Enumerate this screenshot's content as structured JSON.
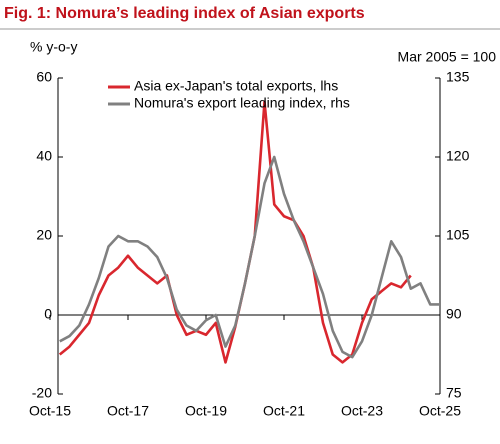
{
  "chart_data": {
    "type": "line",
    "title": "Fig. 1: Nomura’s leading index of Asian exports",
    "y_label": "% y-o-y",
    "y2_label": "Mar 2005 = 100",
    "categories": [
      "Oct-15",
      null,
      null,
      null,
      null,
      null,
      null,
      null,
      "Oct-17",
      null,
      null,
      null,
      null,
      null,
      null,
      null,
      "Oct-19",
      null,
      null,
      null,
      null,
      null,
      null,
      null,
      "Oct-21",
      null,
      null,
      null,
      null,
      null,
      null,
      null,
      "Oct-23",
      null,
      null,
      null,
      null,
      null,
      null,
      null,
      "Oct-25"
    ],
    "series": [
      {
        "name": "Asia ex-Japan's total exports, lhs",
        "color": "#d9272e",
        "axis": "y",
        "values": [
          null,
          -10,
          -8,
          -5,
          -2,
          5,
          10,
          12,
          15,
          12,
          10,
          8,
          10,
          0,
          -5,
          -4,
          -5,
          -2,
          -12,
          -3,
          8,
          20,
          54,
          28,
          25,
          24,
          20,
          12,
          -2,
          -10,
          -12,
          -10,
          -2,
          4,
          6,
          8,
          7,
          10,
          null,
          null,
          null
        ]
      },
      {
        "name": "Nomura's export leading index, rhs",
        "color": "#808080",
        "axis": "y2",
        "values": [
          null,
          85,
          86,
          88,
          92,
          97,
          103,
          105,
          104,
          104,
          103,
          101,
          97,
          91,
          88,
          87,
          89,
          90,
          84,
          88,
          96,
          105,
          115,
          120,
          113,
          108,
          104,
          99,
          94,
          87,
          83,
          82,
          85,
          90,
          97,
          104,
          101,
          95,
          96,
          92,
          92
        ]
      }
    ],
    "ylim": [
      -20,
      60
    ],
    "yticks": [
      -20,
      0,
      20,
      40,
      60
    ],
    "y2lim": [
      75,
      135
    ],
    "y2ticks": [
      75,
      90,
      105,
      120,
      135
    ],
    "legend": "top"
  }
}
